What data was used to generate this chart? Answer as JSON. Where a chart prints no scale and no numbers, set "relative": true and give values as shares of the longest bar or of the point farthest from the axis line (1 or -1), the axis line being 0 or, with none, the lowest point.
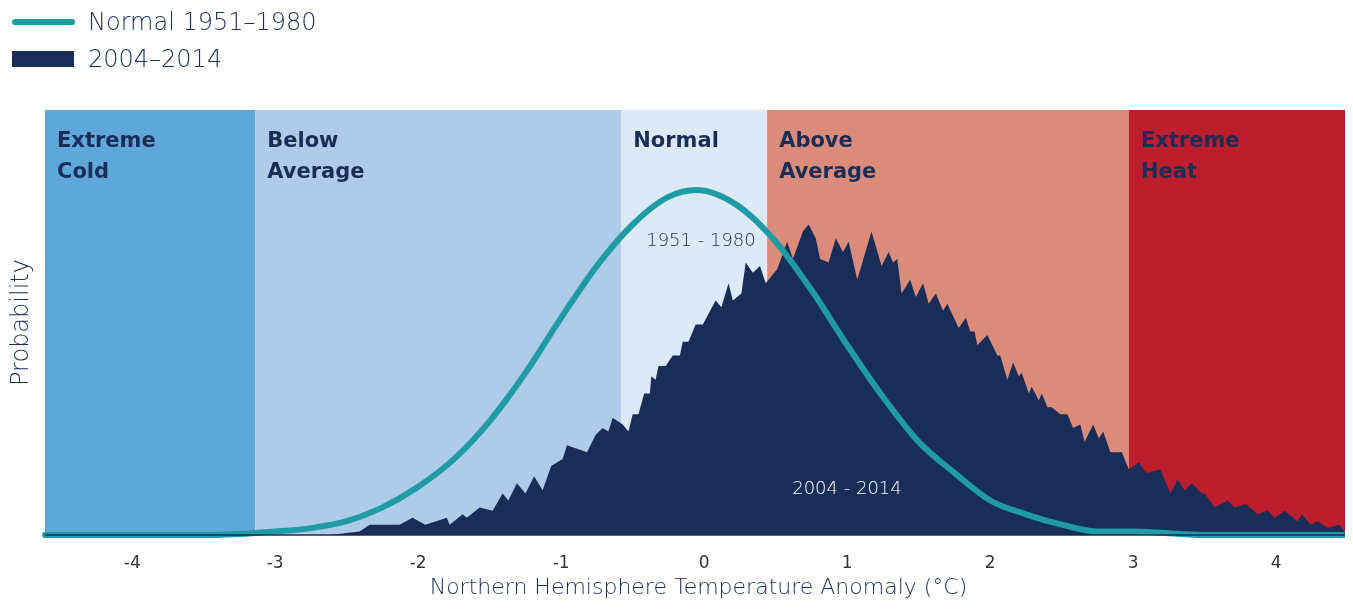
{
  "chart_data": {
    "type": "area",
    "relative": true,
    "xlabel": "Northern Hemisphere Temperature Anomaly (°C)",
    "ylabel": "Probability",
    "xlim": [
      -4.61,
      4.53
    ],
    "xticks": [
      -4,
      -3,
      -2,
      -1,
      0,
      1,
      2,
      3,
      4
    ],
    "tick_labels": "x",
    "legend": "top left",
    "grid": false,
    "bands": [
      {
        "axis": "x",
        "from": -4.61,
        "to": -3.14,
        "label": "Extreme Cold",
        "color": "#5ea7da"
      },
      {
        "axis": "x",
        "from": -3.14,
        "to": -0.58,
        "label": "Below Average",
        "color": "#aecbe8"
      },
      {
        "axis": "x",
        "from": -0.58,
        "to": 0.44,
        "label": "Normal",
        "color": "#dce9f6"
      },
      {
        "axis": "x",
        "from": 0.44,
        "to": 2.97,
        "label": "Above Average",
        "color": "#da8b7a"
      },
      {
        "axis": "x",
        "from": 2.97,
        "to": 4.53,
        "label": "Extreme Heat",
        "color": "#bc1e2d"
      }
    ],
    "annotations": [
      "1951 - 1980",
      "2004 - 2014"
    ],
    "series": [
      {
        "name": "2004–2014",
        "color": "#182d57",
        "x": [
          -2.9,
          -2.62,
          -2.41,
          -2.34,
          -2.13,
          -2.04,
          -1.95,
          -1.8,
          -1.78,
          -1.69,
          -1.66,
          -1.57,
          -1.48,
          -1.41,
          -1.37,
          -1.31,
          -1.25,
          -1.19,
          -1.13,
          -1.07,
          -0.99,
          -0.96,
          -0.82,
          -0.76,
          -0.71,
          -0.67,
          -0.64,
          -0.57,
          -0.53,
          -0.5,
          -0.46,
          -0.42,
          -0.38,
          -0.37,
          -0.34,
          -0.32,
          -0.27,
          -0.22,
          -0.17,
          -0.15,
          -0.11,
          -0.06,
          -0.01,
          0.08,
          0.12,
          0.17,
          0.2,
          0.26,
          0.29,
          0.34,
          0.39,
          0.43,
          0.51,
          0.58,
          0.62,
          0.69,
          0.73,
          0.78,
          0.81,
          0.87,
          0.92,
          0.97,
          1.01,
          1.07,
          1.17,
          1.24,
          1.29,
          1.32,
          1.35,
          1.38,
          1.44,
          1.48,
          1.53,
          1.57,
          1.62,
          1.67,
          1.7,
          1.78,
          1.83,
          1.86,
          1.89,
          1.91,
          1.98,
          2.05,
          2.07,
          2.12,
          2.16,
          2.2,
          2.22,
          2.27,
          2.29,
          2.34,
          2.36,
          2.4,
          2.43,
          2.49,
          2.54,
          2.58,
          2.63,
          2.66,
          2.72,
          2.76,
          2.79,
          2.84,
          2.92,
          2.97,
          3.04,
          3.09,
          3.19,
          3.26,
          3.31,
          3.36,
          3.41,
          3.48,
          3.5,
          3.57,
          3.66,
          3.71,
          3.79,
          3.87,
          3.94,
          3.99,
          4.06,
          4.15,
          4.18,
          4.24,
          4.29,
          4.36,
          4.44,
          4.48,
          4.53
        ],
        "values": [
          0,
          0,
          0.01,
          0.03,
          0.03,
          0.05,
          0.03,
          0.05,
          0.03,
          0.06,
          0.05,
          0.08,
          0.07,
          0.12,
          0.1,
          0.15,
          0.12,
          0.17,
          0.13,
          0.2,
          0.22,
          0.26,
          0.24,
          0.29,
          0.31,
          0.3,
          0.34,
          0.32,
          0.3,
          0.35,
          0.35,
          0.41,
          0.41,
          0.46,
          0.45,
          0.49,
          0.49,
          0.52,
          0.52,
          0.56,
          0.56,
          0.61,
          0.61,
          0.68,
          0.66,
          0.73,
          0.68,
          0.7,
          0.79,
          0.76,
          0.78,
          0.73,
          0.77,
          0.85,
          0.8,
          0.88,
          0.9,
          0.86,
          0.8,
          0.79,
          0.86,
          0.82,
          0.85,
          0.74,
          0.88,
          0.78,
          0.82,
          0.79,
          0.8,
          0.7,
          0.74,
          0.69,
          0.73,
          0.67,
          0.7,
          0.65,
          0.67,
          0.6,
          0.63,
          0.59,
          0.59,
          0.55,
          0.58,
          0.52,
          0.52,
          0.45,
          0.5,
          0.46,
          0.47,
          0.41,
          0.43,
          0.39,
          0.41,
          0.37,
          0.37,
          0.35,
          0.35,
          0.31,
          0.32,
          0.27,
          0.32,
          0.28,
          0.3,
          0.24,
          0.24,
          0.19,
          0.21,
          0.18,
          0.19,
          0.12,
          0.16,
          0.13,
          0.15,
          0.12,
          0.12,
          0.08,
          0.1,
          0.08,
          0.09,
          0.06,
          0.07,
          0.05,
          0.07,
          0.04,
          0.06,
          0.03,
          0.04,
          0.02,
          0.03,
          0.01,
          0
        ]
      },
      {
        "name": "Normal 1951–1980",
        "type": "line",
        "color": "#1f9ba6",
        "line_style": "solid",
        "marker": "none",
        "x": [
          -4.61,
          -3.5,
          -3.0,
          -2.75,
          -2.5,
          -2.25,
          -2.0,
          -1.75,
          -1.5,
          -1.25,
          -1.0,
          -0.75,
          -0.5,
          -0.25,
          -0.06,
          0.25,
          0.5,
          0.75,
          1.0,
          1.25,
          1.5,
          1.75,
          2.0,
          2.25,
          2.5,
          2.75,
          3.0,
          3.5,
          4.53
        ],
        "values": [
          0,
          0,
          0.01,
          0.02,
          0.04,
          0.08,
          0.14,
          0.22,
          0.33,
          0.47,
          0.63,
          0.78,
          0.9,
          0.98,
          1,
          0.95,
          0.85,
          0.71,
          0.55,
          0.4,
          0.27,
          0.18,
          0.1,
          0.06,
          0.03,
          0.01,
          0.01,
          0,
          0
        ]
      }
    ]
  }
}
